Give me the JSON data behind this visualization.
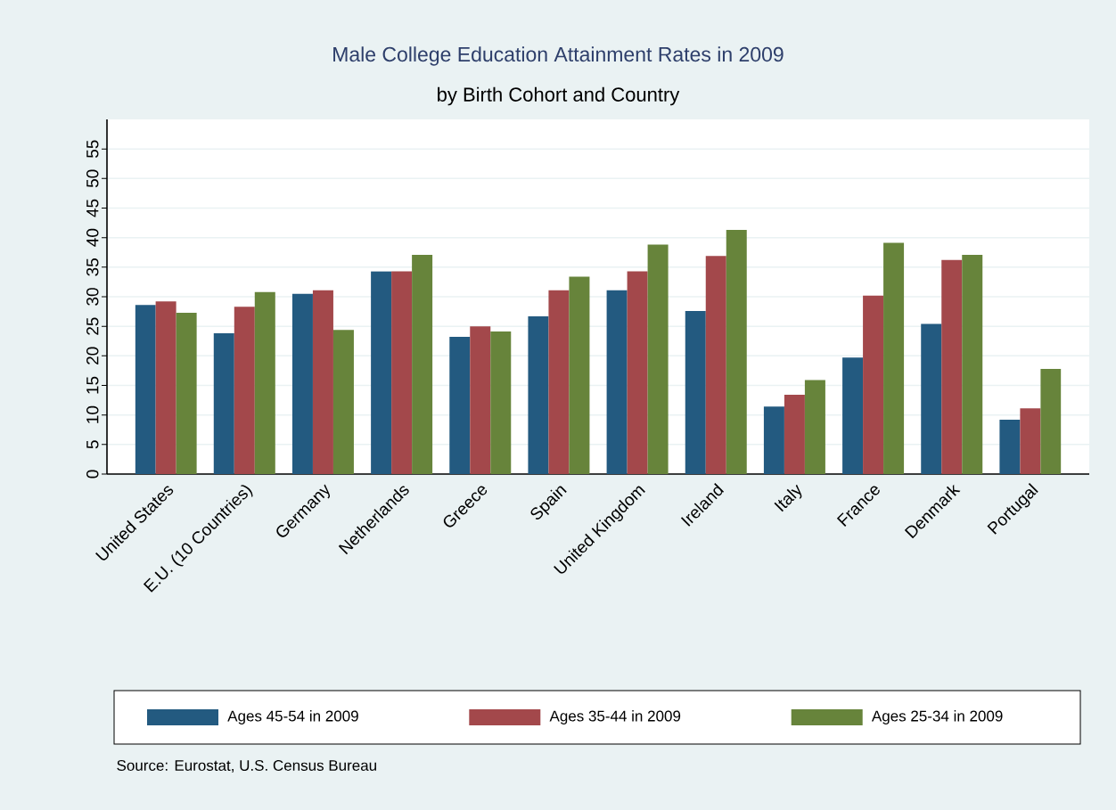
{
  "chart_data": {
    "type": "bar",
    "title": "Male College Education Attainment Rates in 2009",
    "subtitle": "by Birth Cohort and Country",
    "categories": [
      "United States",
      "E.U. (10 Countries)",
      "Germany",
      "Netherlands",
      "Greece",
      "Spain",
      "United Kingdom",
      "Ireland",
      "Italy",
      "France",
      "Denmark",
      "Portugal"
    ],
    "series": [
      {
        "name": "Ages 45-54 in 2009",
        "color": "#235a80",
        "values": [
          28.6,
          23.8,
          30.5,
          34.3,
          23.2,
          26.7,
          31.1,
          27.6,
          11.4,
          19.7,
          25.4,
          9.2
        ]
      },
      {
        "name": "Ages 35-44 in 2009",
        "color": "#a3484b",
        "values": [
          29.2,
          28.3,
          31.1,
          34.3,
          25.0,
          31.1,
          34.3,
          36.9,
          13.4,
          30.2,
          36.2,
          11.1
        ]
      },
      {
        "name": "Ages 25-34 in 2009",
        "color": "#67843b",
        "values": [
          27.3,
          30.8,
          24.4,
          37.1,
          24.1,
          33.4,
          38.8,
          41.3,
          15.9,
          39.1,
          37.1,
          17.8
        ]
      }
    ],
    "ylim": [
      0,
      60
    ],
    "yticks": [
      0,
      5,
      10,
      15,
      20,
      25,
      30,
      35,
      40,
      45,
      50,
      55
    ],
    "grid": "y",
    "legend": "bottom",
    "annotations": [
      "Source: Eurostat, U.S. Census Bureau"
    ]
  }
}
